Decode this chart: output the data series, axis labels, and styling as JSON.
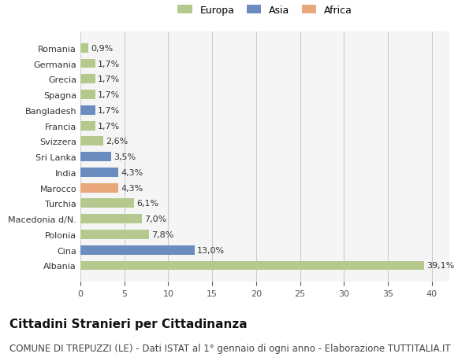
{
  "categories": [
    "Albania",
    "Cina",
    "Polonia",
    "Macedonia d/N.",
    "Turchia",
    "Marocco",
    "India",
    "Sri Lanka",
    "Svizzera",
    "Francia",
    "Bangladesh",
    "Spagna",
    "Grecia",
    "Germania",
    "Romania"
  ],
  "values": [
    39.1,
    13.0,
    7.8,
    7.0,
    6.1,
    4.3,
    4.3,
    3.5,
    2.6,
    1.7,
    1.7,
    1.7,
    1.7,
    1.7,
    0.9
  ],
  "labels": [
    "39,1%",
    "13,0%",
    "7,8%",
    "7,0%",
    "6,1%",
    "4,3%",
    "4,3%",
    "3,5%",
    "2,6%",
    "1,7%",
    "1,7%",
    "1,7%",
    "1,7%",
    "1,7%",
    "0,9%"
  ],
  "colors": [
    "#b5c98e",
    "#6b8cbf",
    "#b5c98e",
    "#b5c98e",
    "#b5c98e",
    "#e8a87c",
    "#6b8cbf",
    "#6b8cbf",
    "#b5c98e",
    "#b5c98e",
    "#6b8cbf",
    "#b5c98e",
    "#b5c98e",
    "#b5c98e",
    "#b5c98e"
  ],
  "legend": [
    {
      "label": "Europa",
      "color": "#b5c98e"
    },
    {
      "label": "Asia",
      "color": "#6b8cbf"
    },
    {
      "label": "Africa",
      "color": "#e8a87c"
    }
  ],
  "xlim": [
    0,
    42
  ],
  "xticks": [
    0,
    5,
    10,
    15,
    20,
    25,
    30,
    35,
    40
  ],
  "grid_color": "#cccccc",
  "title": "Cittadini Stranieri per Cittadinanza",
  "subtitle": "COMUNE DI TREPUZZI (LE) - Dati ISTAT al 1° gennaio di ogni anno - Elaborazione TUTTITALIA.IT",
  "bg_color": "#ffffff",
  "plot_bg_color": "#f5f5f5",
  "title_fontsize": 11,
  "subtitle_fontsize": 8.5,
  "bar_label_fontsize": 8,
  "tick_fontsize": 8,
  "ytick_fontsize": 8,
  "legend_fontsize": 9
}
